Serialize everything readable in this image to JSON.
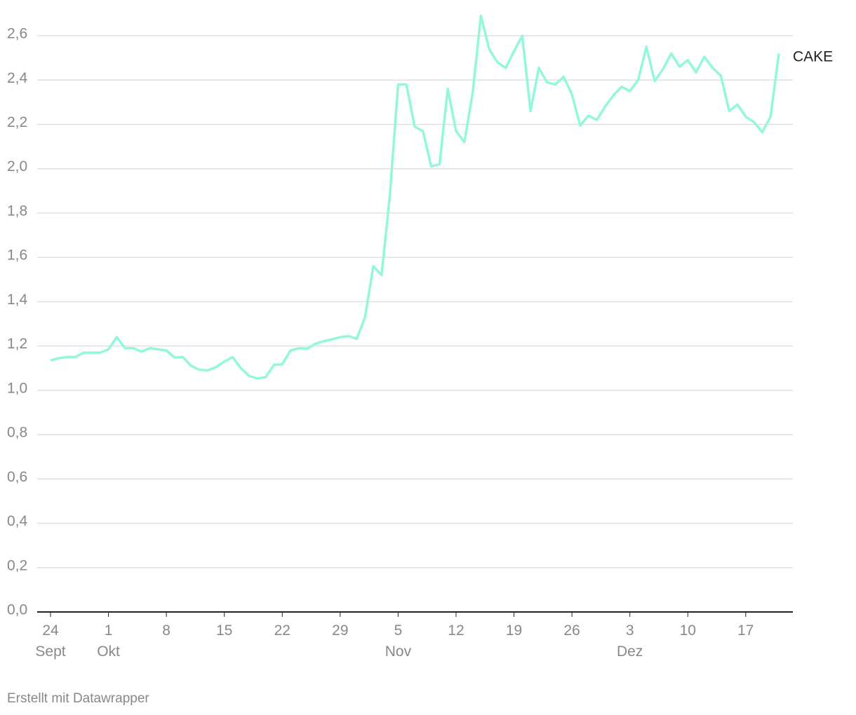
{
  "chart_data": {
    "type": "line",
    "categories": [
      "24 Sept",
      null,
      null,
      null,
      null,
      null,
      null,
      "1 Okt",
      null,
      null,
      null,
      null,
      null,
      null,
      "8",
      null,
      null,
      null,
      null,
      null,
      null,
      "15",
      null,
      null,
      null,
      null,
      null,
      null,
      "22",
      null,
      null,
      null,
      null,
      null,
      null,
      "29",
      null,
      null,
      null,
      null,
      null,
      null,
      "5 Nov",
      null,
      null,
      null,
      null,
      null,
      null,
      "12",
      null,
      null,
      null,
      null,
      null,
      null,
      "19",
      null,
      null,
      null,
      null,
      null,
      null,
      "26",
      null,
      null,
      null,
      null,
      null,
      null,
      "3 Dez",
      null,
      null,
      null,
      null,
      null,
      null,
      "10",
      null,
      null,
      null,
      null,
      null,
      null,
      "17",
      null,
      null,
      null,
      null
    ],
    "series": [
      {
        "name": "CAKE",
        "color": "#93f7dc",
        "values": [
          1.135,
          1.145,
          1.15,
          1.15,
          1.17,
          1.17,
          1.17,
          1.185,
          1.24,
          1.19,
          1.19,
          1.175,
          1.19,
          1.185,
          1.18,
          1.148,
          1.15,
          1.11,
          1.093,
          1.09,
          1.105,
          1.13,
          1.15,
          1.1,
          1.065,
          1.053,
          1.06,
          1.115,
          1.118,
          1.18,
          1.19,
          1.188,
          1.21,
          1.222,
          1.23,
          1.24,
          1.245,
          1.232,
          1.33,
          1.56,
          1.52,
          1.88,
          2.38,
          2.38,
          2.19,
          2.17,
          2.01,
          2.02,
          2.36,
          2.17,
          2.12,
          2.34,
          2.69,
          2.54,
          2.48,
          2.455,
          2.53,
          2.6,
          2.26,
          2.455,
          2.39,
          2.38,
          2.415,
          2.335,
          2.195,
          2.24,
          2.22,
          2.28,
          2.33,
          2.37,
          2.35,
          2.4,
          2.55,
          2.395,
          2.45,
          2.52,
          2.46,
          2.49,
          2.435,
          2.505,
          2.455,
          2.42,
          2.26,
          2.29,
          2.235,
          2.21,
          2.165,
          2.235,
          2.52
        ]
      }
    ],
    "ylim": [
      0,
      2.6
    ],
    "yticks": [
      {
        "value": 0,
        "label": "0,0"
      },
      {
        "value": 0.2,
        "label": "0,2"
      },
      {
        "value": 0.4,
        "label": "0,4"
      },
      {
        "value": 0.6,
        "label": "0,6"
      },
      {
        "value": 0.8,
        "label": "0,8"
      },
      {
        "value": 1,
        "label": "1,0"
      },
      {
        "value": 1.2,
        "label": "1,2"
      },
      {
        "value": 1.4,
        "label": "1,4"
      },
      {
        "value": 1.6,
        "label": "1,6"
      },
      {
        "value": 1.8,
        "label": "1,8"
      },
      {
        "value": 2,
        "label": "2,0"
      },
      {
        "value": 2.2,
        "label": "2,2"
      },
      {
        "value": 2.4,
        "label": "2,4"
      },
      {
        "value": 2.6,
        "label": "2,6"
      }
    ],
    "grid": true,
    "footer": "Erstellt mit Datawrapper"
  }
}
